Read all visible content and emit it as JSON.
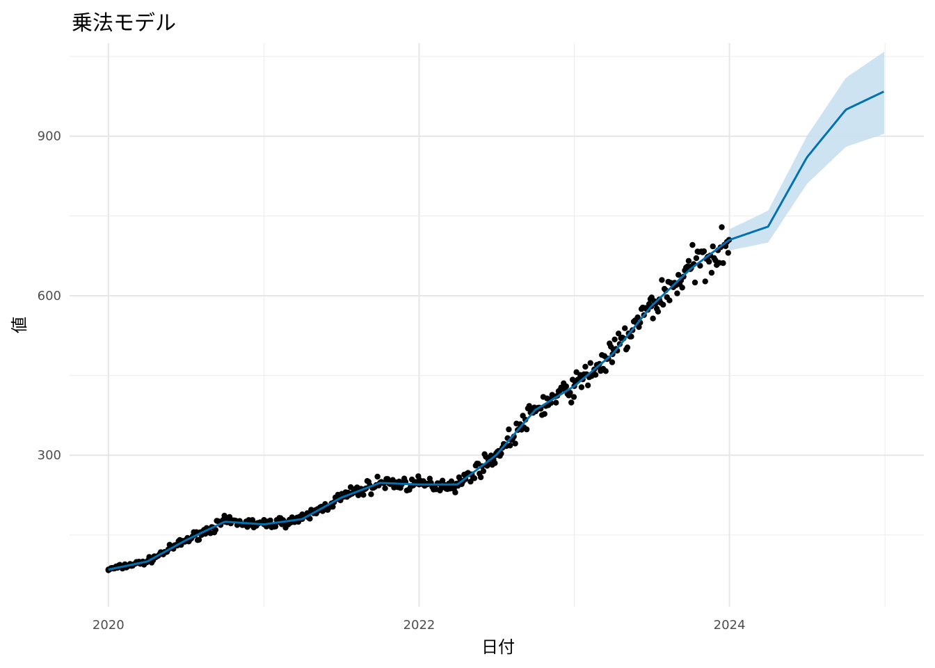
{
  "chart_data": {
    "type": "line",
    "title": "乗法モデル",
    "xlabel": "日付",
    "ylabel": "値",
    "x_ticks": [
      "2020",
      "2022",
      "2024"
    ],
    "y_ticks": [
      "300",
      "600",
      "900"
    ],
    "xlim": [
      "2020-01-01",
      "2025-01-01"
    ],
    "ylim": [
      15,
      1075
    ],
    "grid": true,
    "colors": {
      "observed": "#000000",
      "forecast": "#0072B2",
      "interval": "#C6DEEE"
    },
    "series": [
      {
        "type": "scatter",
        "x": [
          "2020-01-01",
          "2020-04-01",
          "2020-07-01",
          "2020-10-01",
          "2021-01-01",
          "2021-04-01",
          "2021-07-01",
          "2021-10-01",
          "2022-01-01",
          "2022-04-01",
          "2022-07-01",
          "2022-10-01",
          "2023-01-01",
          "2023-04-01",
          "2023-07-01",
          "2023-10-01",
          "2023-12-31"
        ],
        "values": [
          85,
          100,
          140,
          175,
          170,
          180,
          220,
          248,
          245,
          245,
          300,
          385,
          430,
          490,
          580,
          650,
          705
        ]
      },
      {
        "type": "line",
        "x": [
          "2020-01-01",
          "2020-04-01",
          "2020-07-01",
          "2020-10-01",
          "2021-01-01",
          "2021-04-01",
          "2021-07-01",
          "2021-10-01",
          "2022-01-01",
          "2022-04-01",
          "2022-07-01",
          "2022-10-01",
          "2023-01-01",
          "2023-04-01",
          "2023-07-01",
          "2023-10-01",
          "2024-01-01",
          "2024-04-01",
          "2024-07-01",
          "2024-10-01",
          "2025-01-01"
        ],
        "values": [
          85,
          100,
          140,
          175,
          170,
          180,
          220,
          248,
          245,
          245,
          300,
          385,
          430,
          490,
          580,
          650,
          705,
          730,
          860,
          950,
          985
        ]
      },
      {
        "type": "interval",
        "x": [
          "2024-01-01",
          "2024-04-01",
          "2024-07-01",
          "2024-10-01",
          "2025-01-01"
        ],
        "lower": [
          685,
          700,
          810,
          880,
          905
        ],
        "upper": [
          725,
          760,
          900,
          1010,
          1060
        ]
      }
    ]
  }
}
